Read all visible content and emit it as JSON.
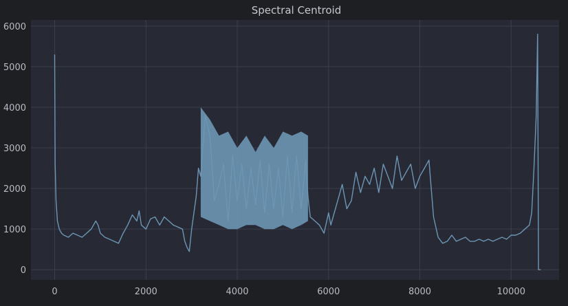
{
  "chart_data": {
    "type": "line",
    "title": "Spectral Centroid",
    "xlabel": "",
    "ylabel": "",
    "xlim": [
      -520,
      11050
    ],
    "ylim": [
      -250,
      6150
    ],
    "xticks": [
      0,
      2000,
      4000,
      6000,
      8000,
      10000
    ],
    "yticks": [
      0,
      1000,
      2000,
      3000,
      4000,
      5000,
      6000
    ],
    "grid": true,
    "colors": {
      "background": "#1e1f23",
      "plot_area": "#272a35",
      "grid": "#3b3f4a",
      "line": "#6d96b4",
      "text": "#b8bcc4"
    },
    "series": [
      {
        "x": [
          0,
          10,
          30,
          60,
          100,
          150,
          200,
          300,
          400,
          500,
          600,
          700,
          800,
          900,
          950,
          1000,
          1100,
          1200,
          1300,
          1400,
          1500,
          1600,
          1700,
          1800,
          1850,
          1900,
          2000,
          2100,
          2200,
          2300,
          2400,
          2500,
          2600,
          2700,
          2800,
          2850,
          2900,
          2950,
          3000,
          3100,
          3150,
          3200,
          3300,
          3400,
          3500,
          3600,
          3700,
          3800,
          3900,
          4000,
          4100,
          4200,
          4300,
          4400,
          4500,
          4600,
          4700,
          4800,
          4900,
          5000,
          5100,
          5200,
          5300,
          5400,
          5500,
          5550,
          5600,
          5700,
          5800,
          5900,
          6000,
          6050,
          6100,
          6200,
          6300,
          6400,
          6500,
          6600,
          6700,
          6800,
          6900,
          7000,
          7100,
          7200,
          7300,
          7400,
          7500,
          7600,
          7700,
          7800,
          7900,
          8000,
          8100,
          8200,
          8250,
          8300,
          8400,
          8500,
          8600,
          8700,
          8800,
          8900,
          9000,
          9100,
          9200,
          9300,
          9400,
          9500,
          9600,
          9700,
          9800,
          9900,
          10000,
          10100,
          10200,
          10300,
          10400,
          10450,
          10500,
          10550,
          10580,
          10600,
          10620,
          10650
        ],
        "y": [
          5300,
          2600,
          1700,
          1200,
          1000,
          900,
          850,
          800,
          900,
          850,
          800,
          900,
          1000,
          1200,
          1100,
          900,
          800,
          750,
          700,
          650,
          900,
          1100,
          1350,
          1200,
          1450,
          1100,
          1000,
          1250,
          1300,
          1100,
          1300,
          1200,
          1100,
          1050,
          1000,
          700,
          550,
          450,
          1000,
          1800,
          2500,
          2300,
          3800,
          3300,
          1700,
          2100,
          2600,
          1200,
          2800,
          1700,
          2600,
          1500,
          2500,
          1600,
          2700,
          1400,
          2600,
          1500,
          2500,
          1300,
          2800,
          1400,
          2800,
          1500,
          2700,
          1800,
          1300,
          1200,
          1100,
          900,
          1400,
          1100,
          1300,
          1700,
          2100,
          1500,
          1700,
          2400,
          1900,
          2300,
          2100,
          2500,
          1900,
          2600,
          2300,
          2000,
          2800,
          2200,
          2400,
          2600,
          2000,
          2300,
          2500,
          2700,
          2000,
          1300,
          800,
          650,
          700,
          850,
          700,
          750,
          800,
          700,
          700,
          750,
          700,
          750,
          700,
          750,
          800,
          750,
          850,
          850,
          900,
          1000,
          1100,
          1400,
          2500,
          3800,
          5800,
          0,
          0,
          0
        ],
        "value_range_envelope": {
          "x": [
            3200,
            3400,
            3600,
            3800,
            4000,
            4200,
            4400,
            4600,
            4800,
            5000,
            5200,
            5400,
            5550
          ],
          "ymin": [
            1300,
            1200,
            1100,
            1000,
            1000,
            1100,
            1100,
            1000,
            1000,
            1100,
            1000,
            1100,
            1200
          ],
          "ymax": [
            4000,
            3700,
            3300,
            3400,
            3000,
            3300,
            2900,
            3300,
            3000,
            3400,
            3300,
            3400,
            3300
          ]
        }
      }
    ]
  }
}
